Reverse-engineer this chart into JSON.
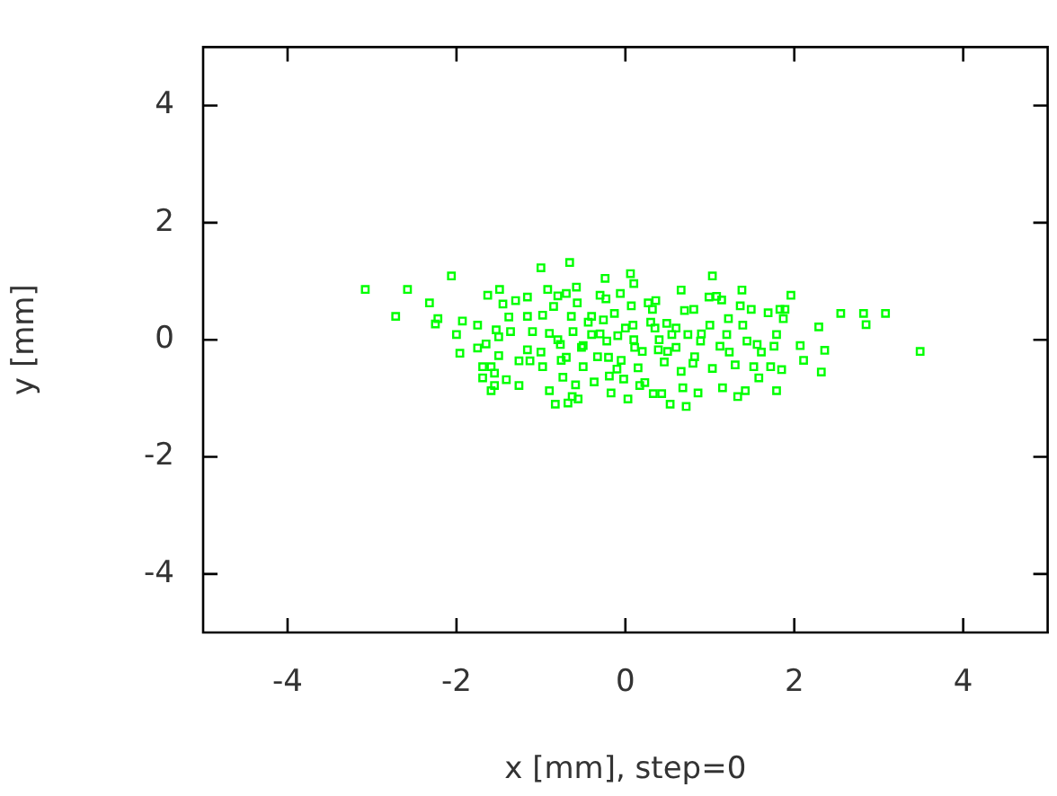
{
  "chart_data": {
    "type": "scatter",
    "xlabel": "x [mm], step=0",
    "ylabel": "y [mm]",
    "xlim": [
      -5,
      5
    ],
    "ylim": [
      -5,
      5
    ],
    "xticks": [
      -4,
      -2,
      0,
      2,
      4
    ],
    "yticks": [
      -4,
      -2,
      0,
      2,
      4
    ],
    "marker": "square",
    "legend": false,
    "series": [
      {
        "color": "#00ff00",
        "x": [
          -3.08,
          -2.58,
          -2.72,
          -2.32,
          -2.22,
          -2.25,
          -2.06,
          -2.0,
          -1.96,
          -1.93,
          -1.75,
          -1.75,
          -1.65,
          -1.69,
          -1.69,
          -1.59,
          -1.55,
          -1.59,
          -1.55,
          -1.63,
          -1.49,
          -1.45,
          -1.53,
          -1.5,
          -1.5,
          -1.41,
          -1.38,
          -1.36,
          -1.3,
          -1.26,
          -1.26,
          -1.16,
          -1.16,
          -1.1,
          -1.16,
          -1.13,
          -1.0,
          -0.92,
          -0.98,
          -0.9,
          -1.0,
          -0.98,
          -0.9,
          -0.83,
          -0.8,
          -0.85,
          -0.77,
          -0.76,
          -0.74,
          -0.66,
          -0.7,
          -0.68,
          -0.63,
          -0.56,
          -0.59,
          -0.58,
          -0.57,
          -0.64,
          -0.62,
          -0.52,
          -0.5,
          -0.44,
          -0.4,
          -0.37,
          -0.33,
          -0.3,
          -0.24,
          -0.23,
          -0.26,
          -0.22,
          -0.19,
          -0.17,
          -0.13,
          -0.06,
          -0.09,
          -0.05,
          -0.02,
          0.03,
          0.06,
          0.1,
          0.07,
          0.09,
          0.11,
          0.15,
          0.17,
          0.23,
          0.27,
          0.32,
          0.36,
          0.35,
          0.39,
          0.33,
          0.43,
          0.46,
          0.49,
          0.53,
          0.55,
          0.6,
          0.66,
          0.66,
          0.68,
          0.72,
          0.7,
          0.74,
          0.81,
          0.82,
          0.86,
          0.89,
          0.99,
          1.03,
          1.0,
          1.03,
          1.08,
          1.12,
          1.14,
          1.15,
          1.2,
          1.22,
          1.23,
          1.3,
          1.33,
          1.38,
          1.36,
          1.39,
          1.44,
          1.42,
          1.49,
          1.52,
          1.58,
          1.56,
          1.61,
          1.69,
          1.72,
          1.76,
          1.79,
          1.79,
          1.83,
          1.87,
          1.89,
          1.85,
          1.96,
          2.07,
          2.11,
          2.29,
          2.36,
          2.32,
          2.55,
          2.82,
          2.85,
          3.08,
          3.49,
          -0.3,
          -0.2,
          0.0,
          0.2,
          0.4,
          0.5,
          -0.5,
          -0.1,
          0.3,
          0.6,
          -0.4,
          0.1,
          -0.7,
          0.8,
          -0.8,
          0.9
        ],
        "values": [
          0.86,
          0.86,
          0.4,
          0.63,
          0.36,
          0.27,
          1.09,
          0.09,
          -0.23,
          0.32,
          0.25,
          -0.14,
          -0.07,
          -0.46,
          -0.65,
          -0.46,
          -0.57,
          -0.87,
          -0.78,
          0.76,
          0.86,
          0.61,
          0.17,
          0.05,
          -0.27,
          -0.68,
          0.39,
          0.14,
          0.67,
          -0.78,
          -0.36,
          0.73,
          0.4,
          0.14,
          -0.17,
          -0.36,
          1.23,
          0.86,
          0.42,
          0.11,
          -0.21,
          -0.46,
          -0.87,
          -1.1,
          0.75,
          0.57,
          -0.08,
          -0.35,
          -0.64,
          1.32,
          0.79,
          -1.08,
          -0.97,
          -1.01,
          -0.77,
          0.9,
          0.63,
          0.4,
          0.14,
          -0.13,
          -0.46,
          0.3,
          0.09,
          -0.72,
          -0.29,
          0.76,
          1.05,
          0.7,
          0.34,
          -0.02,
          -0.62,
          -0.91,
          0.45,
          0.79,
          0.07,
          -0.35,
          -0.67,
          -1.01,
          1.13,
          0.96,
          0.58,
          0.25,
          -0.13,
          -0.48,
          -0.78,
          -0.73,
          0.63,
          0.52,
          0.67,
          0.2,
          -0.17,
          -0.92,
          -0.92,
          -0.38,
          0.28,
          -1.1,
          0.09,
          -0.13,
          0.85,
          -0.54,
          -0.82,
          -1.14,
          0.5,
          0.09,
          0.52,
          -0.29,
          -0.91,
          -0.02,
          0.73,
          1.09,
          0.25,
          -0.49,
          0.74,
          -0.11,
          0.68,
          -0.82,
          0.09,
          0.36,
          -0.21,
          -0.43,
          -0.97,
          0.85,
          0.58,
          0.25,
          -0.02,
          -0.87,
          0.52,
          -0.46,
          -0.65,
          -0.08,
          -0.21,
          0.46,
          -0.46,
          -0.11,
          0.09,
          -0.87,
          0.52,
          0.36,
          0.52,
          -0.51,
          0.76,
          -0.1,
          -0.35,
          0.22,
          -0.18,
          -0.55,
          0.45,
          0.45,
          0.26,
          0.45,
          -0.2,
          0.1,
          -0.3,
          0.2,
          -0.2,
          0.0,
          -0.2,
          -0.1,
          -0.5,
          0.3,
          0.2,
          0.4,
          0.0,
          -0.3,
          -0.4,
          0.0,
          0.1
        ]
      }
    ]
  }
}
